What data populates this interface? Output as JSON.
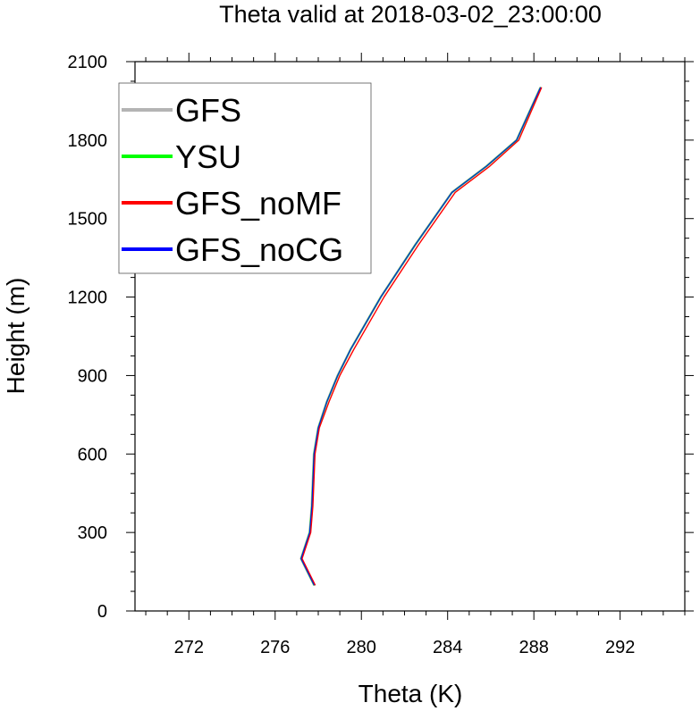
{
  "chart_data": {
    "type": "line",
    "title": "Theta valid at 2018-03-02_23:00:00",
    "xlabel": "Theta (K)",
    "ylabel": "Height (m)",
    "xlim": [
      269.5,
      295
    ],
    "ylim": [
      0,
      2100
    ],
    "xticks": [
      272,
      276,
      280,
      284,
      288,
      292
    ],
    "yticks": [
      0,
      300,
      600,
      900,
      1200,
      1500,
      1800,
      2100
    ],
    "grid": false,
    "legend_position": "top-left",
    "series": [
      {
        "name": "GFS",
        "color": "#b4b4b4",
        "x": [
          277.8,
          277.2,
          277.6,
          277.7,
          277.75,
          277.8,
          278.0,
          278.4,
          278.9,
          279.5,
          280.9,
          282.5,
          284.2,
          285.8,
          287.2,
          288.3
        ],
        "y": [
          100,
          200,
          300,
          400,
          500,
          600,
          700,
          800,
          900,
          1000,
          1200,
          1400,
          1600,
          1700,
          1800,
          2000
        ]
      },
      {
        "name": "YSU",
        "color": "#00ff00",
        "x": [
          277.8,
          277.2,
          277.6,
          277.7,
          277.75,
          277.8,
          278.0,
          278.4,
          278.9,
          279.5,
          280.9,
          282.5,
          284.2,
          285.8,
          287.2,
          288.3
        ],
        "y": [
          100,
          200,
          300,
          400,
          500,
          600,
          700,
          800,
          900,
          1000,
          1200,
          1400,
          1600,
          1700,
          1800,
          2000
        ]
      },
      {
        "name": "GFS_noMF",
        "color": "#ff0000",
        "x": [
          277.85,
          277.25,
          277.65,
          277.75,
          277.8,
          277.85,
          278.05,
          278.5,
          279.0,
          279.65,
          281.05,
          282.65,
          284.35,
          285.95,
          287.3,
          288.35
        ],
        "y": [
          100,
          200,
          300,
          400,
          500,
          600,
          700,
          800,
          900,
          1000,
          1200,
          1400,
          1600,
          1700,
          1800,
          2000
        ]
      },
      {
        "name": "GFS_noCG",
        "color": "#0000ff",
        "x": [
          277.8,
          277.2,
          277.6,
          277.7,
          277.75,
          277.8,
          278.0,
          278.4,
          278.9,
          279.5,
          280.9,
          282.5,
          284.2,
          285.8,
          287.2,
          288.3
        ],
        "y": [
          100,
          200,
          300,
          400,
          500,
          600,
          700,
          800,
          900,
          1000,
          1200,
          1400,
          1600,
          1700,
          1800,
          2000
        ]
      }
    ]
  }
}
